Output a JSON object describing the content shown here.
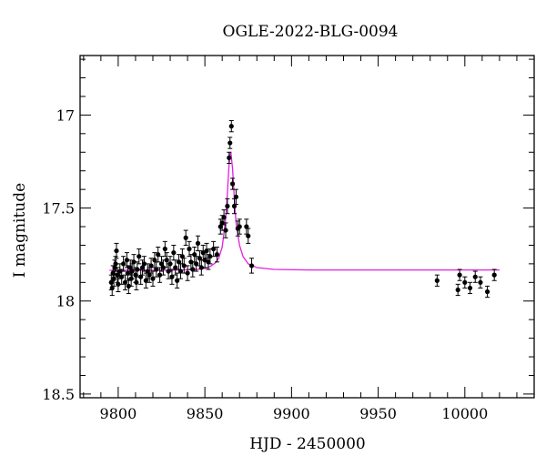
{
  "chart_data": {
    "type": "scatter",
    "title": "OGLE-2022-BLG-0094",
    "xlabel": "HJD - 2450000",
    "ylabel": "I magnitude",
    "xlim": [
      9778,
      10040
    ],
    "ylim": [
      16.68,
      18.52
    ],
    "y_inverted": true,
    "grid": false,
    "x_ticks": [
      9800,
      9850,
      9900,
      9950,
      10000
    ],
    "x_tick_labels": [
      "9800",
      "9850",
      "9900",
      "9950",
      "10000"
    ],
    "y_ticks": [
      17.0,
      17.5,
      18.0,
      18.5
    ],
    "y_tick_labels": [
      "17",
      "17.5",
      "18",
      "18.5"
    ],
    "colors": {
      "data": "#000000",
      "model": "#e020e0"
    },
    "series": [
      {
        "role": "observations",
        "points": [
          {
            "x": 9796,
            "y": 17.9,
            "err": 0.04
          },
          {
            "x": 9796.5,
            "y": 17.93,
            "err": 0.04
          },
          {
            "x": 9797,
            "y": 17.85,
            "err": 0.04
          },
          {
            "x": 9797.5,
            "y": 17.88,
            "err": 0.04
          },
          {
            "x": 9798,
            "y": 17.82,
            "err": 0.04
          },
          {
            "x": 9798.5,
            "y": 17.8,
            "err": 0.04
          },
          {
            "x": 9799,
            "y": 17.73,
            "err": 0.04
          },
          {
            "x": 9799.5,
            "y": 17.86,
            "err": 0.04
          },
          {
            "x": 9800,
            "y": 17.91,
            "err": 0.04
          },
          {
            "x": 9801,
            "y": 17.84,
            "err": 0.04
          },
          {
            "x": 9802,
            "y": 17.87,
            "err": 0.04
          },
          {
            "x": 9803,
            "y": 17.8,
            "err": 0.04
          },
          {
            "x": 9804,
            "y": 17.9,
            "err": 0.04
          },
          {
            "x": 9805,
            "y": 17.78,
            "err": 0.04
          },
          {
            "x": 9805.5,
            "y": 17.85,
            "err": 0.04
          },
          {
            "x": 9806,
            "y": 17.92,
            "err": 0.04
          },
          {
            "x": 9807,
            "y": 17.82,
            "err": 0.04
          },
          {
            "x": 9807.5,
            "y": 17.88,
            "err": 0.04
          },
          {
            "x": 9808,
            "y": 17.84,
            "err": 0.04
          },
          {
            "x": 9809,
            "y": 17.79,
            "err": 0.04
          },
          {
            "x": 9810,
            "y": 17.86,
            "err": 0.04
          },
          {
            "x": 9810.5,
            "y": 17.9,
            "err": 0.04
          },
          {
            "x": 9811,
            "y": 17.83,
            "err": 0.04
          },
          {
            "x": 9812,
            "y": 17.76,
            "err": 0.04
          },
          {
            "x": 9813,
            "y": 17.87,
            "err": 0.04
          },
          {
            "x": 9814,
            "y": 17.82,
            "err": 0.04
          },
          {
            "x": 9815,
            "y": 17.8,
            "err": 0.04
          },
          {
            "x": 9816,
            "y": 17.89,
            "err": 0.04
          },
          {
            "x": 9817,
            "y": 17.84,
            "err": 0.04
          },
          {
            "x": 9818,
            "y": 17.86,
            "err": 0.04
          },
          {
            "x": 9819,
            "y": 17.81,
            "err": 0.04
          },
          {
            "x": 9820,
            "y": 17.88,
            "err": 0.04
          },
          {
            "x": 9821,
            "y": 17.78,
            "err": 0.04
          },
          {
            "x": 9822,
            "y": 17.83,
            "err": 0.04
          },
          {
            "x": 9823,
            "y": 17.75,
            "err": 0.04
          },
          {
            "x": 9824,
            "y": 17.86,
            "err": 0.04
          },
          {
            "x": 9825,
            "y": 17.8,
            "err": 0.04
          },
          {
            "x": 9826,
            "y": 17.82,
            "err": 0.04
          },
          {
            "x": 9827,
            "y": 17.72,
            "err": 0.04
          },
          {
            "x": 9828,
            "y": 17.78,
            "err": 0.04
          },
          {
            "x": 9829,
            "y": 17.84,
            "err": 0.04
          },
          {
            "x": 9830,
            "y": 17.8,
            "err": 0.04
          },
          {
            "x": 9831,
            "y": 17.87,
            "err": 0.04
          },
          {
            "x": 9832,
            "y": 17.74,
            "err": 0.04
          },
          {
            "x": 9833,
            "y": 17.82,
            "err": 0.04
          },
          {
            "x": 9834,
            "y": 17.89,
            "err": 0.04
          },
          {
            "x": 9835,
            "y": 17.79,
            "err": 0.04
          },
          {
            "x": 9836,
            "y": 17.84,
            "err": 0.04
          },
          {
            "x": 9837,
            "y": 17.76,
            "err": 0.04
          },
          {
            "x": 9838,
            "y": 17.81,
            "err": 0.04
          },
          {
            "x": 9839,
            "y": 17.66,
            "err": 0.04
          },
          {
            "x": 9840,
            "y": 17.85,
            "err": 0.04
          },
          {
            "x": 9841,
            "y": 17.72,
            "err": 0.04
          },
          {
            "x": 9842,
            "y": 17.79,
            "err": 0.04
          },
          {
            "x": 9843,
            "y": 17.83,
            "err": 0.04
          },
          {
            "x": 9844,
            "y": 17.75,
            "err": 0.04
          },
          {
            "x": 9845,
            "y": 17.8,
            "err": 0.04
          },
          {
            "x": 9846,
            "y": 17.69,
            "err": 0.04
          },
          {
            "x": 9847,
            "y": 17.77,
            "err": 0.04
          },
          {
            "x": 9848,
            "y": 17.82,
            "err": 0.04
          },
          {
            "x": 9849,
            "y": 17.74,
            "err": 0.04
          },
          {
            "x": 9850,
            "y": 17.78,
            "err": 0.04
          },
          {
            "x": 9851,
            "y": 17.73,
            "err": 0.04
          },
          {
            "x": 9852,
            "y": 17.79,
            "err": 0.04
          },
          {
            "x": 9853,
            "y": 17.76,
            "err": 0.04
          },
          {
            "x": 9855,
            "y": 17.72,
            "err": 0.04
          },
          {
            "x": 9857,
            "y": 17.75,
            "err": 0.04
          },
          {
            "x": 9859,
            "y": 17.6,
            "err": 0.04
          },
          {
            "x": 9860,
            "y": 17.58,
            "err": 0.04
          },
          {
            "x": 9861,
            "y": 17.55,
            "err": 0.04
          },
          {
            "x": 9862,
            "y": 17.62,
            "err": 0.04
          },
          {
            "x": 9863,
            "y": 17.49,
            "err": 0.04
          },
          {
            "x": 9864,
            "y": 17.23,
            "err": 0.03
          },
          {
            "x": 9864.5,
            "y": 17.15,
            "err": 0.03
          },
          {
            "x": 9865.3,
            "y": 17.06,
            "err": 0.03
          },
          {
            "x": 9866,
            "y": 17.37,
            "err": 0.03
          },
          {
            "x": 9867,
            "y": 17.49,
            "err": 0.04
          },
          {
            "x": 9868,
            "y": 17.44,
            "err": 0.04
          },
          {
            "x": 9869,
            "y": 17.61,
            "err": 0.04
          },
          {
            "x": 9870,
            "y": 17.6,
            "err": 0.04
          },
          {
            "x": 9874,
            "y": 17.6,
            "err": 0.04
          },
          {
            "x": 9875,
            "y": 17.65,
            "err": 0.04
          },
          {
            "x": 9877,
            "y": 17.81,
            "err": 0.04
          },
          {
            "x": 9984,
            "y": 17.89,
            "err": 0.03
          },
          {
            "x": 9996,
            "y": 17.94,
            "err": 0.03
          },
          {
            "x": 9997,
            "y": 17.86,
            "err": 0.03
          },
          {
            "x": 10000,
            "y": 17.9,
            "err": 0.03
          },
          {
            "x": 10003,
            "y": 17.93,
            "err": 0.03
          },
          {
            "x": 10006,
            "y": 17.87,
            "err": 0.03
          },
          {
            "x": 10009,
            "y": 17.9,
            "err": 0.03
          },
          {
            "x": 10013,
            "y": 17.95,
            "err": 0.03
          },
          {
            "x": 10017,
            "y": 17.86,
            "err": 0.03
          }
        ]
      },
      {
        "role": "model",
        "x": [
          9795,
          9830,
          9845,
          9850,
          9853,
          9856,
          9858,
          9860,
          9862,
          9863,
          9864,
          9864.5,
          9865,
          9866,
          9867,
          9868,
          9870,
          9872,
          9875,
          9880,
          9890,
          9910,
          10020
        ],
        "y": [
          17.835,
          17.834,
          17.831,
          17.825,
          17.815,
          17.795,
          17.77,
          17.71,
          17.56,
          17.42,
          17.26,
          17.21,
          17.2,
          17.29,
          17.45,
          17.58,
          17.7,
          17.76,
          17.8,
          17.82,
          17.83,
          17.833,
          17.833
        ]
      }
    ]
  }
}
